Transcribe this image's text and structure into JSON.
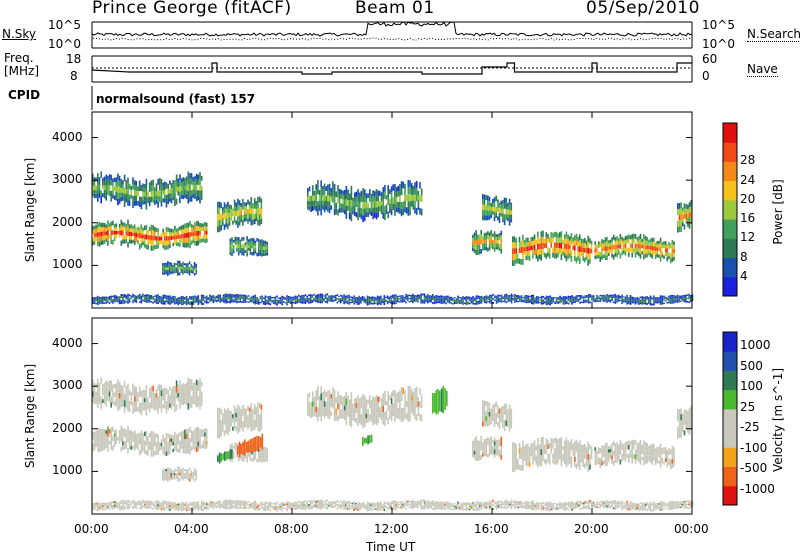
{
  "header": {
    "station": "Prince George (fitACF)",
    "beam": "Beam 01",
    "date": "05/Sep/2010",
    "cpid_label": "CPID",
    "cpid_value": "normalsound (fast) 157"
  },
  "noise_panel": {
    "left_label": "N.Sky",
    "right_label": "N.Search",
    "left_ticks": [
      "10^5",
      "10^0"
    ],
    "right_ticks": [
      "10^5",
      "10^0"
    ]
  },
  "freq_panel": {
    "left_label_1": "Freq.",
    "left_label_2": "[MHz]",
    "right_label": "Nave",
    "left_ticks": [
      "18",
      "8"
    ],
    "right_ticks": [
      "60",
      "0"
    ]
  },
  "colors": {
    "power": [
      "#1a22e0",
      "#1a50b0",
      "#2e7a52",
      "#41a05a",
      "#9cc93c",
      "#f5c21c",
      "#f68a18",
      "#f24a14",
      "#e01010"
    ],
    "velocity": [
      "#e01212",
      "#f0641a",
      "#f5a21c",
      "#c8c8bc",
      "#c8c8bc",
      "#48b82c",
      "#2e7a52",
      "#2050b0",
      "#1a22cc"
    ]
  },
  "chart_data": [
    {
      "type": "heatmap",
      "name": "power",
      "ylabel": "Slant Range [km]",
      "yticks": [
        "1000",
        "2000",
        "3000",
        "4000"
      ],
      "ylim": [
        0,
        4600
      ],
      "xlim": [
        "00:00",
        "24:00"
      ],
      "colorbar_label": "Power [dB]",
      "colorbar_ticks": [
        "4",
        "8",
        "12",
        "16",
        "20",
        "24",
        "28"
      ],
      "colorbar_range": [
        0,
        30
      ],
      "bands": [
        {
          "start": 0.0,
          "end": 4.6,
          "center": 1700,
          "width": 280,
          "peak": 26
        },
        {
          "start": 0.0,
          "end": 4.4,
          "center": 2750,
          "width": 320,
          "peak": 14
        },
        {
          "start": 2.8,
          "end": 4.2,
          "center": 900,
          "width": 150,
          "peak": 12
        },
        {
          "start": 5.0,
          "end": 6.8,
          "center": 2200,
          "width": 300,
          "peak": 18
        },
        {
          "start": 5.5,
          "end": 7.0,
          "center": 1400,
          "width": 200,
          "peak": 14
        },
        {
          "start": 8.6,
          "end": 13.2,
          "center": 2500,
          "width": 350,
          "peak": 14
        },
        {
          "start": 15.2,
          "end": 16.4,
          "center": 1500,
          "width": 250,
          "peak": 20
        },
        {
          "start": 15.6,
          "end": 16.8,
          "center": 2300,
          "width": 300,
          "peak": 16
        },
        {
          "start": 16.8,
          "end": 20.0,
          "center": 1400,
          "width": 300,
          "peak": 26
        },
        {
          "start": 20.1,
          "end": 23.3,
          "center": 1400,
          "width": 250,
          "peak": 24
        },
        {
          "start": 23.4,
          "end": 24.0,
          "center": 2150,
          "width": 300,
          "peak": 22
        },
        {
          "start": 0.0,
          "end": 24.0,
          "center": 200,
          "width": 100,
          "peak": 8
        }
      ]
    },
    {
      "type": "heatmap",
      "name": "velocity",
      "ylabel": "Slant Range [km]",
      "yticks": [
        "1000",
        "2000",
        "3000",
        "4000"
      ],
      "ylim": [
        0,
        4600
      ],
      "xlim": [
        "00:00",
        "24:00"
      ],
      "xlabel": "Time UT",
      "xticks": [
        "00:00",
        "04:00",
        "08:00",
        "12:00",
        "16:00",
        "20:00",
        "00:00"
      ],
      "colorbar_label": "Velocity [m s^-1]",
      "colorbar_ticks": [
        "1000",
        "500",
        "100",
        "25",
        "-25",
        "-100",
        "-500",
        "-1000"
      ],
      "features": [
        {
          "start": 5.8,
          "end": 6.8,
          "center": 1500,
          "width": 350,
          "velocity": -400
        },
        {
          "start": 5.0,
          "end": 5.6,
          "center": 1300,
          "width": 250,
          "velocity": 80
        },
        {
          "start": 10.8,
          "end": 11.2,
          "center": 1700,
          "width": 200,
          "velocity": 80
        },
        {
          "start": 13.6,
          "end": 14.2,
          "center": 2600,
          "width": 600,
          "velocity": 80
        }
      ]
    }
  ]
}
